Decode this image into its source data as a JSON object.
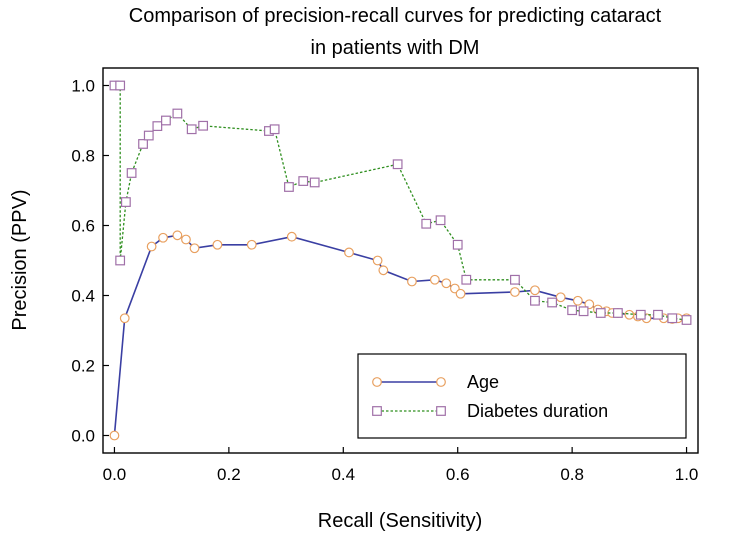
{
  "chart_data": {
    "type": "line",
    "title_lines": [
      "Comparison of precision-recall curves for predicting cataract",
      "in patients with DM"
    ],
    "xlabel": "Recall (Sensitivity)",
    "ylabel": "Precision (PPV)",
    "xlim": [
      -0.02,
      1.02
    ],
    "ylim": [
      -0.05,
      1.05
    ],
    "xticks": [
      0.0,
      0.2,
      0.4,
      0.6,
      0.8,
      1.0
    ],
    "xtick_labels": [
      "0.0",
      "0.2",
      "0.4",
      "0.6",
      "0.8",
      "1.0"
    ],
    "yticks": [
      0.0,
      0.2,
      0.4,
      0.6,
      0.8,
      1.0
    ],
    "ytick_labels": [
      "0.0",
      "0.2",
      "0.4",
      "0.6",
      "0.8",
      "1.0"
    ],
    "grid": false,
    "legend_position": "bottom-right",
    "series": [
      {
        "name": "Age",
        "color": "#3a3fa3",
        "marker": "circle",
        "marker_color": "#e8a060",
        "line_style": "solid",
        "points": [
          [
            0.0,
            0.0
          ],
          [
            0.018,
            0.335
          ],
          [
            0.065,
            0.54
          ],
          [
            0.085,
            0.565
          ],
          [
            0.11,
            0.572
          ],
          [
            0.125,
            0.56
          ],
          [
            0.14,
            0.535
          ],
          [
            0.18,
            0.545
          ],
          [
            0.24,
            0.545
          ],
          [
            0.31,
            0.568
          ],
          [
            0.41,
            0.523
          ],
          [
            0.46,
            0.5
          ],
          [
            0.47,
            0.472
          ],
          [
            0.52,
            0.44
          ],
          [
            0.56,
            0.445
          ],
          [
            0.58,
            0.435
          ],
          [
            0.595,
            0.42
          ],
          [
            0.605,
            0.405
          ],
          [
            0.7,
            0.41
          ],
          [
            0.735,
            0.415
          ],
          [
            0.78,
            0.395
          ],
          [
            0.81,
            0.385
          ],
          [
            0.83,
            0.375
          ],
          [
            0.845,
            0.36
          ],
          [
            0.86,
            0.355
          ],
          [
            0.87,
            0.35
          ],
          [
            0.88,
            0.35
          ],
          [
            0.9,
            0.345
          ],
          [
            0.915,
            0.34
          ],
          [
            0.93,
            0.335
          ],
          [
            0.96,
            0.335
          ],
          [
            0.975,
            0.333
          ],
          [
            0.985,
            0.335
          ],
          [
            1.0,
            0.335
          ]
        ]
      },
      {
        "name": "Diabetes duration",
        "color": "#2f8f1f",
        "marker": "square",
        "marker_color": "#a070a8",
        "line_style": "dotted",
        "points": [
          [
            0.0,
            1.0
          ],
          [
            0.01,
            1.0
          ],
          [
            0.01,
            0.5
          ],
          [
            0.02,
            0.667
          ],
          [
            0.03,
            0.75
          ],
          [
            0.05,
            0.833
          ],
          [
            0.06,
            0.857
          ],
          [
            0.075,
            0.884
          ],
          [
            0.09,
            0.9
          ],
          [
            0.11,
            0.92
          ],
          [
            0.135,
            0.875
          ],
          [
            0.155,
            0.885
          ],
          [
            0.27,
            0.87
          ],
          [
            0.28,
            0.875
          ],
          [
            0.305,
            0.71
          ],
          [
            0.33,
            0.727
          ],
          [
            0.35,
            0.723
          ],
          [
            0.495,
            0.775
          ],
          [
            0.545,
            0.605
          ],
          [
            0.57,
            0.615
          ],
          [
            0.6,
            0.545
          ],
          [
            0.615,
            0.445
          ],
          [
            0.7,
            0.445
          ],
          [
            0.735,
            0.385
          ],
          [
            0.765,
            0.38
          ],
          [
            0.8,
            0.358
          ],
          [
            0.82,
            0.355
          ],
          [
            0.85,
            0.35
          ],
          [
            0.88,
            0.35
          ],
          [
            0.92,
            0.345
          ],
          [
            0.95,
            0.345
          ],
          [
            0.975,
            0.335
          ],
          [
            1.0,
            0.33
          ]
        ]
      }
    ]
  }
}
